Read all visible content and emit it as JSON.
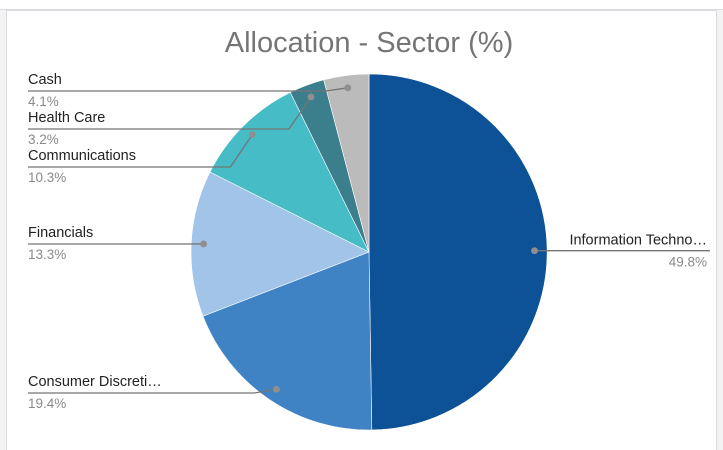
{
  "chart_data": {
    "type": "pie",
    "title": "Allocation - Sector (%)",
    "slices": [
      {
        "label": "Information Techno…",
        "value": 49.8,
        "display": "49.8%",
        "color": "#0d5196",
        "side": "right"
      },
      {
        "label": "Consumer Discreti…",
        "value": 19.4,
        "display": "19.4%",
        "color": "#3f83c5",
        "side": "left"
      },
      {
        "label": "Financials",
        "value": 13.3,
        "display": "13.3%",
        "color": "#a2c4e9",
        "side": "left"
      },
      {
        "label": "Communications",
        "value": 10.3,
        "display": "10.3%",
        "color": "#45bcc6",
        "side": "left"
      },
      {
        "label": "Health Care",
        "value": 3.2,
        "display": "3.2%",
        "color": "#3b7e8c",
        "side": "left"
      },
      {
        "label": "Cash",
        "value": 4.1,
        "display": "4.1%",
        "color": "#bbbbbb",
        "side": "left"
      }
    ],
    "legend": "none",
    "start_angle": "12 o'clock, clockwise"
  }
}
